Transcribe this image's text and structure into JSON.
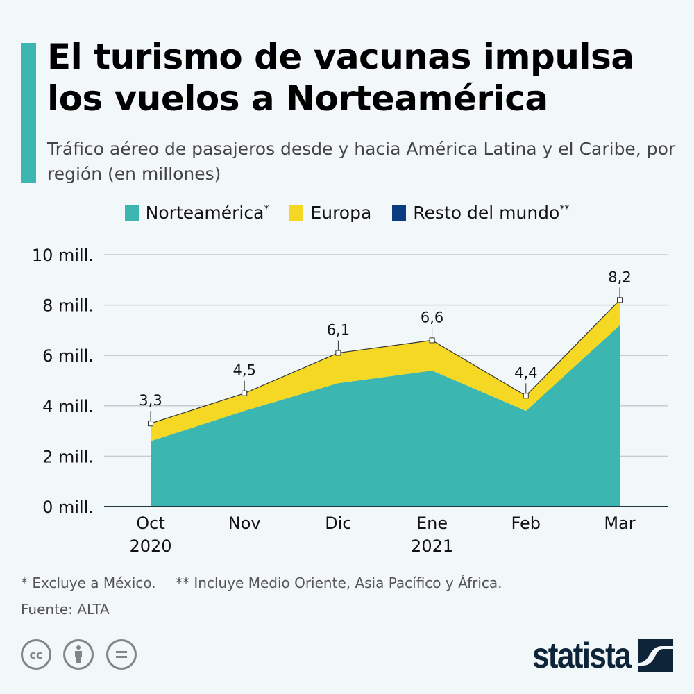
{
  "title": "El turismo de vacunas impulsa los vuelos a Norteamérica",
  "subtitle": "Tráfico aéreo de pasajeros desde y hacia América Latina y el Caribe, por región (en millones)",
  "legend": [
    {
      "label": "Norteamérica",
      "sup": "*",
      "color": "#3cb6b0"
    },
    {
      "label": "Europa",
      "sup": "",
      "color": "#f5d824"
    },
    {
      "label": "Resto del mundo",
      "sup": "**",
      "color": "#0b3c82"
    }
  ],
  "chart_data": {
    "type": "area",
    "stacked": true,
    "categories": [
      "Oct\n2020",
      "Nov",
      "Dic",
      "Ene\n2021",
      "Feb",
      "Mar"
    ],
    "series": [
      {
        "name": "Norteamérica",
        "values": [
          2.6,
          3.8,
          4.9,
          5.4,
          3.8,
          7.2
        ],
        "color": "#3cb6b0"
      },
      {
        "name": "Europa",
        "values": [
          0.7,
          0.7,
          1.2,
          1.2,
          0.6,
          1.0
        ],
        "color": "#f5d824"
      }
    ],
    "totals": [
      3.3,
      4.5,
      6.1,
      6.6,
      4.4,
      8.2
    ],
    "total_labels": [
      "3,3",
      "4,5",
      "6,1",
      "6,6",
      "4,4",
      "8,2"
    ],
    "ylim": [
      0,
      10
    ],
    "yticks": [
      0,
      2,
      4,
      6,
      8,
      10
    ],
    "ytick_labels": [
      "0 mill.",
      "2 mill.",
      "4 mill.",
      "6 mill.",
      "8 mill.",
      "10 mill."
    ],
    "grid": true
  },
  "footnotes": {
    "note1": "* Excluye a México.",
    "note2": "** Incluye Medio Oriente, Asia Pacífico y África.",
    "source": "Fuente: ALTA"
  },
  "license_icons": [
    "cc-icon",
    "attribution-icon",
    "no-derivatives-icon"
  ],
  "brand": "statista"
}
